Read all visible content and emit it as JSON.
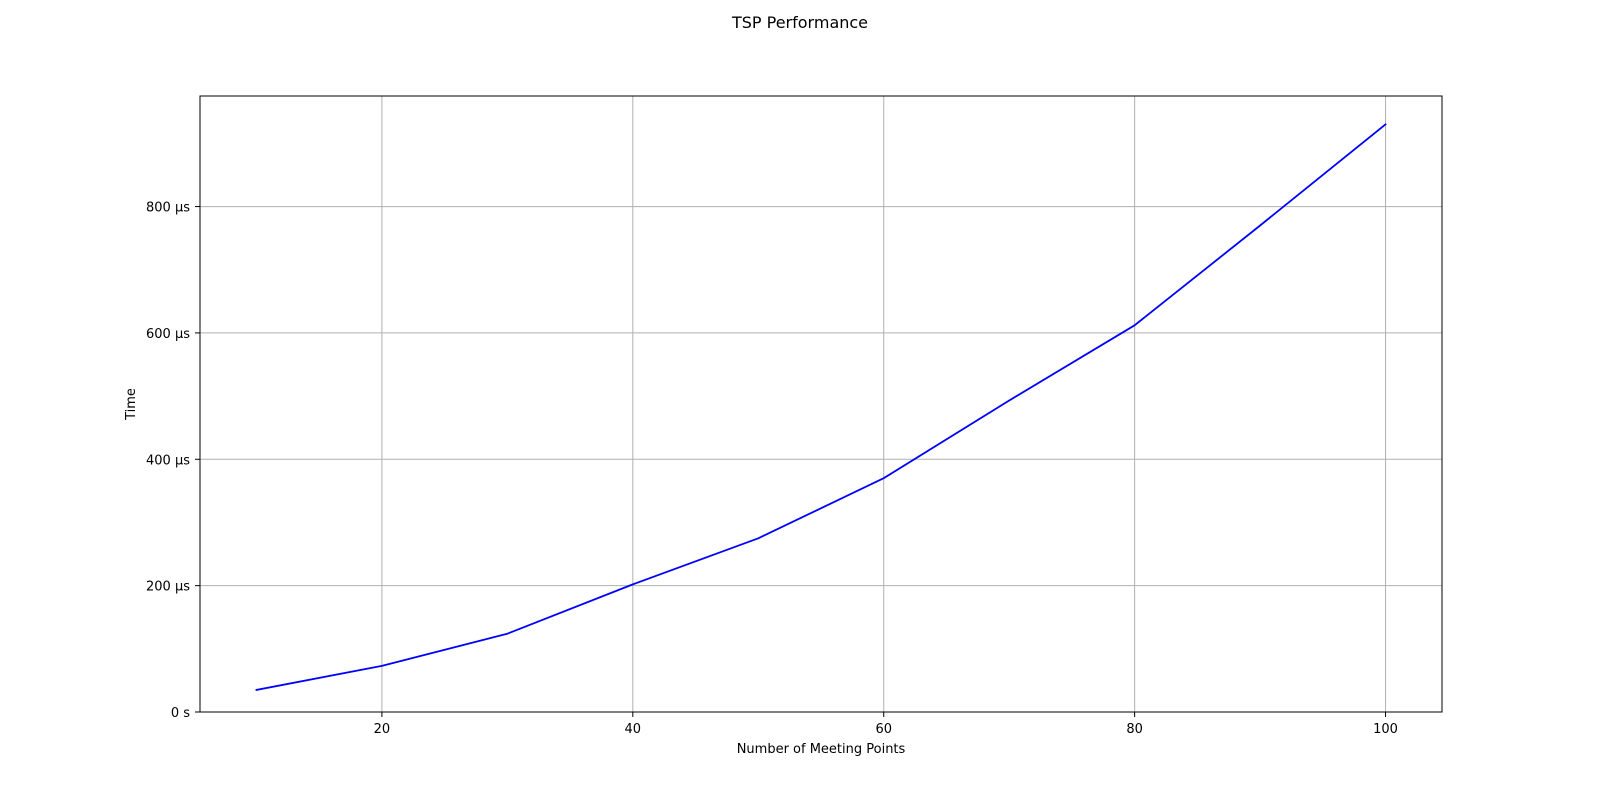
{
  "chart_data": {
    "type": "line",
    "title": "TSP Performance",
    "xlabel": "Number of Meeting Points",
    "ylabel": "Time",
    "x": [
      10,
      20,
      30,
      40,
      50,
      60,
      70,
      80,
      90,
      100
    ],
    "series": [
      {
        "color": "#0000ff",
        "values": [
          35,
          73,
          124,
          202,
          275,
          370,
          493,
          612,
          770,
          930
        ]
      }
    ],
    "xlim": [
      5.5,
      104.5
    ],
    "ylim": [
      0,
      975
    ],
    "x_ticks": [
      20,
      40,
      60,
      80,
      100
    ],
    "x_tick_labels": [
      "20",
      "40",
      "60",
      "80",
      "100"
    ],
    "y_ticks": [
      0,
      200,
      400,
      600,
      800
    ],
    "y_tick_labels": [
      "0 s",
      "200 µs",
      "400 µs",
      "600 µs",
      "800 µs"
    ],
    "grid": true,
    "y_unit": "µs"
  }
}
